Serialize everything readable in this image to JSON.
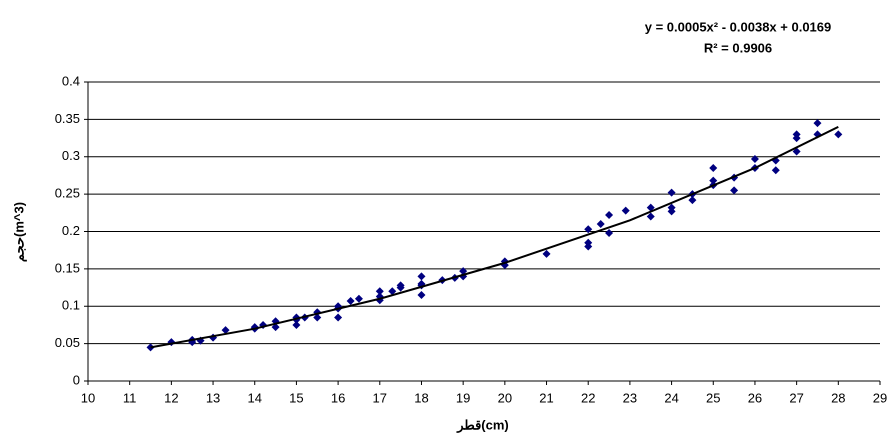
{
  "chart_data": {
    "type": "scatter",
    "annotations": [
      "y = 0.0005x² - 0.0038x + 0.0169",
      "R² = 0.9906"
    ],
    "xlabel": "قطر(cm)",
    "ylabel": "حجم(m^3)",
    "x": [
      11.5,
      12,
      12.5,
      12.5,
      12.7,
      13,
      13.3,
      14,
      14,
      14.2,
      14.5,
      14.5,
      15,
      15,
      15,
      15.2,
      15.5,
      15.5,
      16,
      16,
      16,
      16.3,
      16.5,
      17,
      17,
      17,
      17.3,
      17.5,
      17.5,
      18,
      18,
      18,
      18,
      18.5,
      18.8,
      19,
      19,
      20,
      20,
      21,
      22,
      22,
      22,
      22.3,
      22.5,
      22.5,
      22.9,
      23.5,
      23.5,
      24,
      24,
      24,
      24.5,
      24.5,
      25,
      25,
      25,
      25.5,
      25.5,
      26,
      26,
      26.5,
      26.5,
      27,
      27,
      27,
      27.5,
      27.5,
      28
    ],
    "values": [
      0.045,
      0.052,
      0.055,
      0.052,
      0.054,
      0.058,
      0.068,
      0.07,
      0.072,
      0.075,
      0.08,
      0.072,
      0.085,
      0.075,
      0.082,
      0.085,
      0.092,
      0.085,
      0.1,
      0.085,
      0.097,
      0.107,
      0.11,
      0.12,
      0.108,
      0.113,
      0.12,
      0.128,
      0.125,
      0.14,
      0.128,
      0.115,
      0.13,
      0.135,
      0.138,
      0.147,
      0.14,
      0.16,
      0.155,
      0.17,
      0.203,
      0.185,
      0.18,
      0.21,
      0.222,
      0.198,
      0.228,
      0.232,
      0.22,
      0.252,
      0.232,
      0.227,
      0.25,
      0.242,
      0.285,
      0.268,
      0.262,
      0.272,
      0.255,
      0.297,
      0.285,
      0.295,
      0.282,
      0.33,
      0.325,
      0.307,
      0.345,
      0.33,
      0.33
    ],
    "color": "#000080",
    "trendline": {
      "x": [
        11.5,
        14,
        17,
        20,
        23,
        26,
        28
      ],
      "values": [
        0.045,
        0.07,
        0.11,
        0.158,
        0.215,
        0.285,
        0.34
      ],
      "color": "#000000"
    },
    "xlim": [
      10,
      29
    ],
    "xticks": [
      10,
      11,
      12,
      13,
      14,
      15,
      16,
      17,
      18,
      19,
      20,
      21,
      22,
      23,
      24,
      25,
      26,
      27,
      28,
      29
    ],
    "ylim": [
      0,
      0.4
    ],
    "yticks": [
      0,
      0.05,
      0.1,
      0.15,
      0.2,
      0.25,
      0.3,
      0.35,
      0.4
    ],
    "grid": true
  }
}
